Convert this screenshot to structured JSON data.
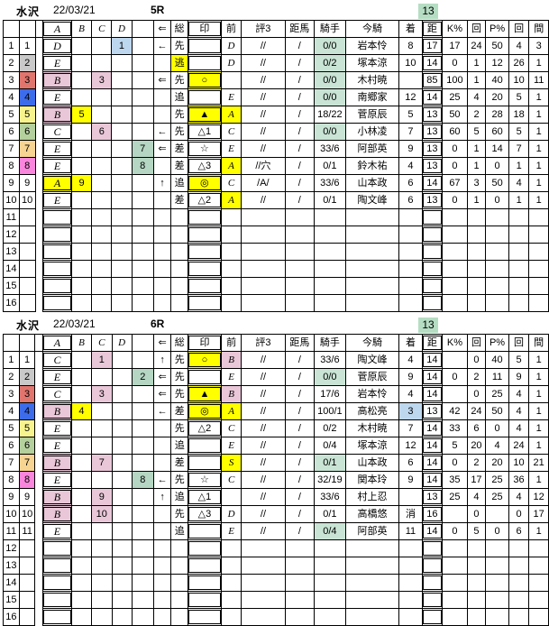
{
  "headers": {
    "no": "",
    "waku": "",
    "gap": "",
    "grade": "A",
    "numB": "B",
    "numC": "C",
    "numD": "D",
    "numE": "",
    "arrow": "⇐",
    "style": "総",
    "mark": "印",
    "prev": "前",
    "eval3": "評3",
    "dist_horse": "距馬",
    "jockey": "騎手",
    "jockey_name": "今騎",
    "finish": "着",
    "dist": "距",
    "k_pct": "K%",
    "k_cnt": "回",
    "p_pct": "P%",
    "p_cnt": "回",
    "gap_days": "間"
  },
  "colors": {
    "yellow": "#ffff00",
    "pink": "#e9c7d8",
    "lightblue": "#bdd7ee",
    "green": "#b5d6c2",
    "mint": "#c9e4d5",
    "corner_green": "#b5ddc3",
    "gray": "#bfbfbf",
    "rose": "#eec7cc",
    "waku1": "#ffffff",
    "waku2": "#c9c9c9",
    "waku3": "#e0756e",
    "waku4": "#3d6ceb",
    "waku5": "#f7f48e",
    "waku6": "#b4d09d",
    "waku7": "#f7d491",
    "waku8": "#fa85dc"
  },
  "tables": [
    {
      "track": "水沢",
      "date": "22/03/21",
      "race": "5R",
      "corner_value": "13",
      "rows": [
        {
          "no": "1",
          "waku": "1",
          "waku_color": "waku1",
          "grade": "D",
          "grade_color": "",
          "num": "1",
          "num_col": "D",
          "num_color": "lightblue",
          "arrow": "←",
          "style": "先",
          "style_color": "",
          "mark": "",
          "mark_color": "",
          "prev": "D",
          "prev_color": "",
          "eval3": "//",
          "dist_horse": "/",
          "jockey": "0/0",
          "jockey_color": "mint",
          "jockey_name": "岩本怜",
          "finish": "8",
          "finish_color": "",
          "dist": "17",
          "k_pct": "17",
          "k_cnt": "24",
          "p_pct": "50",
          "p_cnt": "4",
          "gap_days": "3",
          "gap_color": ""
        },
        {
          "no": "2",
          "waku": "2",
          "waku_color": "waku2",
          "grade": "E",
          "grade_color": "",
          "num": "",
          "num_col": "",
          "num_color": "",
          "arrow": "",
          "style": "逃",
          "style_color": "yellow",
          "mark": "",
          "mark_color": "",
          "prev": "D",
          "prev_color": "",
          "eval3": "//",
          "dist_horse": "/",
          "jockey": "0/2",
          "jockey_color": "mint",
          "jockey_name": "塚本涼",
          "finish": "10",
          "finish_color": "",
          "dist": "14",
          "k_pct": "0",
          "k_cnt": "1",
          "p_pct": "12",
          "p_cnt": "26",
          "gap_days": "1",
          "gap_color": "gray"
        },
        {
          "no": "3",
          "waku": "3",
          "waku_color": "waku3",
          "grade": "B",
          "grade_color": "pink",
          "num": "3",
          "num_col": "C",
          "num_color": "pink",
          "arrow": "⇐",
          "style": "先",
          "style_color": "",
          "mark": "○",
          "mark_color": "yellow",
          "prev": "",
          "prev_color": "",
          "eval3": "//",
          "dist_horse": "/",
          "jockey": "0/0",
          "jockey_color": "mint",
          "jockey_name": "木村暁",
          "finish": "",
          "finish_color": "",
          "dist": "85",
          "k_pct": "100",
          "k_cnt": "1",
          "p_pct": "40",
          "p_cnt": "10",
          "gap_days": "11",
          "gap_color": ""
        },
        {
          "no": "4",
          "waku": "4",
          "waku_color": "waku4",
          "grade": "E",
          "grade_color": "",
          "num": "",
          "num_col": "",
          "num_color": "",
          "arrow": "",
          "style": "追",
          "style_color": "",
          "mark": "",
          "mark_color": "",
          "prev": "E",
          "prev_color": "",
          "eval3": "//",
          "dist_horse": "/",
          "jockey": "0/0",
          "jockey_color": "mint",
          "jockey_name": "南郷家",
          "finish": "12",
          "finish_color": "",
          "dist": "14",
          "k_pct": "25",
          "k_cnt": "4",
          "p_pct": "20",
          "p_cnt": "5",
          "gap_days": "1",
          "gap_color": "gray"
        },
        {
          "no": "5",
          "waku": "5",
          "waku_color": "waku5",
          "grade": "B",
          "grade_color": "pink",
          "num": "5",
          "num_col": "B",
          "num_color": "yellow",
          "arrow": "",
          "style": "先",
          "style_color": "",
          "mark": "▲",
          "mark_color": "yellow",
          "prev": "A",
          "prev_color": "yellow",
          "eval3": "//",
          "dist_horse": "/",
          "jockey": "18/22",
          "jockey_color": "",
          "jockey_name": "菅原辰",
          "finish": "5",
          "finish_color": "",
          "dist": "13",
          "k_pct": "50",
          "k_cnt": "2",
          "p_pct": "28",
          "p_cnt": "18",
          "gap_days": "1",
          "gap_color": "gray"
        },
        {
          "no": "6",
          "waku": "6",
          "waku_color": "waku6",
          "grade": "C",
          "grade_color": "",
          "num": "6",
          "num_col": "C",
          "num_color": "pink",
          "arrow": "←",
          "style": "先",
          "style_color": "",
          "mark": "△1",
          "mark_color": "",
          "prev": "C",
          "prev_color": "",
          "eval3": "//",
          "dist_horse": "/",
          "jockey": "0/0",
          "jockey_color": "mint",
          "jockey_name": "小林凌",
          "finish": "7",
          "finish_color": "",
          "dist": "13",
          "k_pct": "60",
          "k_cnt": "5",
          "p_pct": "60",
          "p_cnt": "5",
          "gap_days": "1",
          "gap_color": "gray"
        },
        {
          "no": "7",
          "waku": "7",
          "waku_color": "waku7",
          "grade": "E",
          "grade_color": "",
          "num": "7",
          "num_col": "E",
          "num_color": "green",
          "arrow": "⇐",
          "style": "差",
          "style_color": "",
          "mark": "☆",
          "mark_color": "",
          "prev": "E",
          "prev_color": "",
          "eval3": "//",
          "dist_horse": "/",
          "jockey": "33/6",
          "jockey_color": "",
          "jockey_name": "阿部英",
          "finish": "9",
          "finish_color": "",
          "dist": "13",
          "k_pct": "0",
          "k_cnt": "1",
          "p_pct": "14",
          "p_cnt": "7",
          "gap_days": "1",
          "gap_color": "gray"
        },
        {
          "no": "8",
          "waku": "8",
          "waku_color": "waku8",
          "grade": "E",
          "grade_color": "",
          "num": "8",
          "num_col": "E",
          "num_color": "green",
          "arrow": "",
          "style": "差",
          "style_color": "",
          "mark": "△3",
          "mark_color": "",
          "prev": "A",
          "prev_color": "yellow",
          "eval3": "//穴",
          "dist_horse": "/",
          "jockey": "0/1",
          "jockey_color": "",
          "jockey_name": "鈴木祐",
          "finish": "4",
          "finish_color": "",
          "dist": "13",
          "k_pct": "0",
          "k_cnt": "1",
          "p_pct": "0",
          "p_cnt": "1",
          "gap_days": "1",
          "gap_color": "gray"
        },
        {
          "no": "9",
          "waku": "9",
          "waku_color": "waku1",
          "grade": "A",
          "grade_color": "yellow",
          "num": "9",
          "num_col": "B",
          "num_color": "yellow",
          "arrow": "↑",
          "style": "追",
          "style_color": "",
          "mark": "◎",
          "mark_color": "yellow",
          "prev": "C",
          "prev_color": "",
          "eval3": "/A/",
          "dist_horse": "/",
          "jockey": "33/6",
          "jockey_color": "",
          "jockey_name": "山本政",
          "finish": "6",
          "finish_color": "",
          "dist": "14",
          "k_pct": "67",
          "k_cnt": "3",
          "p_pct": "50",
          "p_cnt": "4",
          "gap_days": "1",
          "gap_color": "gray"
        },
        {
          "no": "10",
          "waku": "10",
          "waku_color": "waku1",
          "grade": "E",
          "grade_color": "",
          "num": "",
          "num_col": "",
          "num_color": "",
          "arrow": "",
          "style": "差",
          "style_color": "",
          "mark": "△2",
          "mark_color": "",
          "prev": "A",
          "prev_color": "yellow",
          "eval3": "//",
          "dist_horse": "/",
          "jockey": "0/1",
          "jockey_color": "",
          "jockey_name": "陶文峰",
          "finish": "6",
          "finish_color": "",
          "dist": "13",
          "k_pct": "0",
          "k_cnt": "1",
          "p_pct": "0",
          "p_cnt": "1",
          "gap_days": "1",
          "gap_color": "gray"
        },
        {
          "no": "11"
        },
        {
          "no": "12"
        },
        {
          "no": "13"
        },
        {
          "no": "14"
        },
        {
          "no": "15"
        },
        {
          "no": "16"
        }
      ]
    },
    {
      "track": "水沢",
      "date": "22/03/21",
      "race": "6R",
      "corner_value": "13",
      "rows": [
        {
          "no": "1",
          "waku": "1",
          "waku_color": "waku1",
          "grade": "C",
          "grade_color": "",
          "num": "1",
          "num_col": "C",
          "num_color": "pink",
          "arrow": "↑",
          "style": "先",
          "style_color": "",
          "mark": "○",
          "mark_color": "yellow",
          "prev": "B",
          "prev_color": "pink",
          "eval3": "//",
          "dist_horse": "/",
          "jockey": "33/6",
          "jockey_color": "",
          "jockey_name": "陶文峰",
          "finish": "4",
          "finish_color": "",
          "dist": "14",
          "k_pct": "",
          "k_cnt": "0",
          "p_pct": "40",
          "p_cnt": "5",
          "gap_days": "1",
          "gap_color": "gray"
        },
        {
          "no": "2",
          "waku": "2",
          "waku_color": "waku2",
          "grade": "E",
          "grade_color": "",
          "num": "2",
          "num_col": "E",
          "num_color": "green",
          "arrow": "⇐",
          "style": "先",
          "style_color": "",
          "mark": "",
          "mark_color": "",
          "prev": "E",
          "prev_color": "",
          "eval3": "//",
          "dist_horse": "/",
          "jockey": "0/0",
          "jockey_color": "mint",
          "jockey_name": "菅原辰",
          "finish": "9",
          "finish_color": "",
          "dist": "14",
          "k_pct": "0",
          "k_cnt": "2",
          "p_pct": "11",
          "p_cnt": "9",
          "gap_days": "1",
          "gap_color": "gray"
        },
        {
          "no": "3",
          "waku": "3",
          "waku_color": "waku3",
          "grade": "C",
          "grade_color": "",
          "num": "3",
          "num_col": "C",
          "num_color": "pink",
          "arrow": "⇐",
          "style": "先",
          "style_color": "",
          "mark": "▲",
          "mark_color": "yellow",
          "prev": "B",
          "prev_color": "pink",
          "eval3": "//",
          "dist_horse": "/",
          "jockey": "17/6",
          "jockey_color": "",
          "jockey_name": "岩本怜",
          "finish": "4",
          "finish_color": "",
          "dist": "14",
          "k_pct": "",
          "k_cnt": "0",
          "p_pct": "25",
          "p_cnt": "4",
          "gap_days": "1",
          "gap_color": "gray"
        },
        {
          "no": "4",
          "waku": "4",
          "waku_color": "waku4",
          "grade": "B",
          "grade_color": "pink",
          "num": "4",
          "num_col": "B",
          "num_color": "yellow",
          "arrow": "←",
          "style": "差",
          "style_color": "",
          "mark": "◎",
          "mark_color": "yellow",
          "prev": "A",
          "prev_color": "yellow",
          "eval3": "//",
          "dist_horse": "/",
          "jockey": "100/1",
          "jockey_color": "",
          "jockey_name": "高松亮",
          "finish": "3",
          "finish_color": "lightblue",
          "dist": "13",
          "k_pct": "42",
          "k_cnt": "24",
          "p_pct": "50",
          "p_cnt": "4",
          "gap_days": "1",
          "gap_color": "gray"
        },
        {
          "no": "5",
          "waku": "5",
          "waku_color": "waku5",
          "grade": "E",
          "grade_color": "",
          "num": "",
          "num_col": "",
          "num_color": "",
          "arrow": "",
          "style": "先",
          "style_color": "",
          "mark": "△2",
          "mark_color": "",
          "prev": "C",
          "prev_color": "",
          "eval3": "//",
          "dist_horse": "/",
          "jockey": "0/2",
          "jockey_color": "",
          "jockey_name": "木村暁",
          "finish": "7",
          "finish_color": "",
          "dist": "14",
          "k_pct": "33",
          "k_cnt": "6",
          "p_pct": "0",
          "p_cnt": "4",
          "gap_days": "1",
          "gap_color": "gray"
        },
        {
          "no": "6",
          "waku": "6",
          "waku_color": "waku6",
          "grade": "E",
          "grade_color": "",
          "num": "",
          "num_col": "",
          "num_color": "",
          "arrow": "",
          "style": "追",
          "style_color": "",
          "mark": "",
          "mark_color": "",
          "prev": "E",
          "prev_color": "",
          "eval3": "//",
          "dist_horse": "/",
          "jockey": "0/4",
          "jockey_color": "",
          "jockey_name": "塚本涼",
          "finish": "12",
          "finish_color": "",
          "dist": "14",
          "k_pct": "5",
          "k_cnt": "20",
          "p_pct": "4",
          "p_cnt": "24",
          "gap_days": "1",
          "gap_color": "gray"
        },
        {
          "no": "7",
          "waku": "7",
          "waku_color": "waku7",
          "grade": "B",
          "grade_color": "pink",
          "num": "7",
          "num_col": "C",
          "num_color": "pink",
          "arrow": "",
          "style": "差",
          "style_color": "",
          "mark": "",
          "mark_color": "",
          "prev": "S",
          "prev_color": "yellow",
          "eval3": "//",
          "dist_horse": "/",
          "jockey": "0/1",
          "jockey_color": "mint",
          "jockey_name": "山本政",
          "finish": "6",
          "finish_color": "",
          "dist": "14",
          "k_pct": "0",
          "k_cnt": "2",
          "p_pct": "20",
          "p_cnt": "10",
          "gap_days": "21",
          "gap_color": "rose"
        },
        {
          "no": "8",
          "waku": "8",
          "waku_color": "waku8",
          "grade": "E",
          "grade_color": "",
          "num": "8",
          "num_col": "E",
          "num_color": "green",
          "arrow": "←",
          "style": "先",
          "style_color": "",
          "mark": "☆",
          "mark_color": "",
          "prev": "C",
          "prev_color": "",
          "eval3": "//",
          "dist_horse": "/",
          "jockey": "32/19",
          "jockey_color": "",
          "jockey_name": "関本玲",
          "finish": "9",
          "finish_color": "",
          "dist": "14",
          "k_pct": "35",
          "k_cnt": "17",
          "p_pct": "25",
          "p_cnt": "36",
          "gap_days": "1",
          "gap_color": "gray"
        },
        {
          "no": "9",
          "waku": "9",
          "waku_color": "waku1",
          "grade": "B",
          "grade_color": "pink",
          "num": "9",
          "num_col": "C",
          "num_color": "pink",
          "arrow": "↑",
          "style": "追",
          "style_color": "",
          "mark": "△1",
          "mark_color": "",
          "prev": "",
          "prev_color": "",
          "eval3": "//",
          "dist_horse": "/",
          "jockey": "33/6",
          "jockey_color": "",
          "jockey_name": "村上忍",
          "finish": "",
          "finish_color": "",
          "dist": "13",
          "k_pct": "25",
          "k_cnt": "4",
          "p_pct": "25",
          "p_cnt": "4",
          "gap_days": "12",
          "gap_color": "rose"
        },
        {
          "no": "10",
          "waku": "10",
          "waku_color": "waku1",
          "grade": "B",
          "grade_color": "pink",
          "num": "10",
          "num_col": "C",
          "num_color": "pink",
          "arrow": "",
          "style": "先",
          "style_color": "",
          "mark": "△3",
          "mark_color": "",
          "prev": "D",
          "prev_color": "",
          "eval3": "//",
          "dist_horse": "/",
          "jockey": "0/1",
          "jockey_color": "",
          "jockey_name": "高橋悠",
          "finish": "消",
          "finish_color": "",
          "dist": "16",
          "k_pct": "",
          "k_cnt": "0",
          "p_pct": "",
          "p_cnt": "0",
          "gap_days": "17",
          "gap_color": "rose"
        },
        {
          "no": "11",
          "waku": "11",
          "waku_color": "waku1",
          "grade": "E",
          "grade_color": "",
          "num": "",
          "num_col": "",
          "num_color": "",
          "arrow": "",
          "style": "追",
          "style_color": "",
          "mark": "",
          "mark_color": "",
          "prev": "E",
          "prev_color": "",
          "eval3": "//",
          "dist_horse": "/",
          "jockey": "0/4",
          "jockey_color": "mint",
          "jockey_name": "阿部英",
          "finish": "11",
          "finish_color": "",
          "dist": "14",
          "k_pct": "0",
          "k_cnt": "5",
          "p_pct": "0",
          "p_cnt": "6",
          "gap_days": "1",
          "gap_color": "gray"
        },
        {
          "no": "12"
        },
        {
          "no": "13"
        },
        {
          "no": "14"
        },
        {
          "no": "15"
        },
        {
          "no": "16"
        }
      ]
    }
  ]
}
